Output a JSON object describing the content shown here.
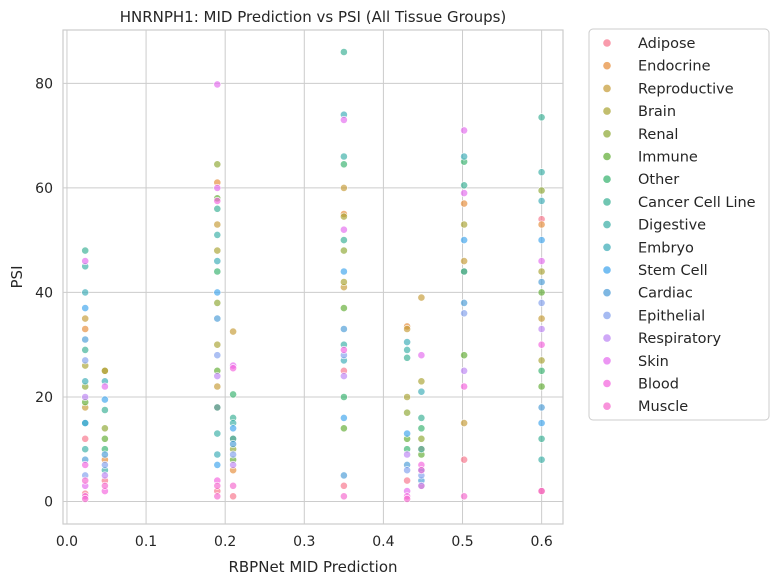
{
  "chart_data": {
    "type": "scatter",
    "title": "HNRNPH1: MID Prediction vs PSI (All Tissue Groups)",
    "xlabel": "RBPNet MID Prediction",
    "ylabel": "PSI",
    "xlim": [
      -0.005,
      0.627
    ],
    "ylim": [
      -4.3,
      90.2
    ],
    "xticks": [
      "0.0",
      "0.1",
      "0.2",
      "0.3",
      "0.4",
      "0.5",
      "0.6"
    ],
    "yticks": [
      "0",
      "20",
      "40",
      "60",
      "80"
    ],
    "xtick_values": [
      0.0,
      0.1,
      0.2,
      0.3,
      0.4,
      0.5,
      0.6
    ],
    "ytick_values": [
      0,
      20,
      40,
      60,
      80
    ],
    "grid": true,
    "legend_position": "outside-right",
    "x_clusters": [
      0.023,
      0.048,
      0.19,
      0.21,
      0.35,
      0.43,
      0.448,
      0.502,
      0.6
    ],
    "series": [
      {
        "name": "Adipose",
        "color": "#f77189",
        "x": [
          0.023,
          0.023,
          0.048,
          0.19,
          0.19,
          0.21,
          0.35,
          0.35,
          0.43,
          0.448,
          0.502,
          0.6,
          0.6
        ],
        "y": [
          1.5,
          12,
          4,
          2,
          18,
          1,
          3,
          25,
          4,
          3,
          8,
          2,
          54
        ]
      },
      {
        "name": "Endocrine",
        "color": "#e58a35",
        "x": [
          0.023,
          0.048,
          0.19,
          0.21,
          0.35,
          0.43,
          0.448,
          0.502,
          0.6
        ],
        "y": [
          33,
          8,
          61,
          6,
          55,
          33.5,
          10,
          57,
          53
        ]
      },
      {
        "name": "Reproductive",
        "color": "#c59a33",
        "x": [
          0.023,
          0.023,
          0.048,
          0.19,
          0.19,
          0.21,
          0.35,
          0.35,
          0.43,
          0.448,
          0.502,
          0.502,
          0.6
        ],
        "y": [
          35,
          18,
          25,
          53,
          22,
          32.5,
          60,
          41,
          33,
          39,
          46,
          15,
          35
        ]
      },
      {
        "name": "Brain",
        "color": "#a8a230",
        "x": [
          0.023,
          0.048,
          0.19,
          0.19,
          0.21,
          0.35,
          0.35,
          0.43,
          0.448,
          0.502,
          0.6,
          0.6
        ],
        "y": [
          26,
          25,
          48,
          30,
          12,
          54.5,
          42,
          20,
          23,
          53,
          44,
          27
        ]
      },
      {
        "name": "Renal",
        "color": "#8ca630",
        "x": [
          0.023,
          0.048,
          0.19,
          0.19,
          0.21,
          0.35,
          0.43,
          0.448,
          0.502,
          0.6
        ],
        "y": [
          22,
          14,
          64.5,
          38,
          10,
          48,
          17,
          12,
          44,
          59.5
        ]
      },
      {
        "name": "Immune",
        "color": "#5dab30",
        "x": [
          0.023,
          0.048,
          0.19,
          0.19,
          0.21,
          0.35,
          0.35,
          0.43,
          0.448,
          0.502,
          0.6,
          0.6
        ],
        "y": [
          19,
          12,
          58,
          25,
          8,
          37,
          14,
          12,
          9,
          28,
          40,
          22
        ]
      },
      {
        "name": "Other",
        "color": "#32b16b",
        "x": [
          0.023,
          0.048,
          0.19,
          0.21,
          0.35,
          0.35,
          0.43,
          0.448,
          0.502,
          0.6
        ],
        "y": [
          15,
          10,
          44,
          20.5,
          64.5,
          20,
          10,
          14,
          65,
          25
        ]
      },
      {
        "name": "Cancer Cell Line",
        "color": "#34ae92",
        "x": [
          0.023,
          0.023,
          0.048,
          0.19,
          0.19,
          0.21,
          0.35,
          0.35,
          0.43,
          0.448,
          0.502,
          0.6,
          0.6
        ],
        "y": [
          48,
          29,
          17.5,
          56,
          18,
          16,
          86,
          50,
          27.5,
          16,
          60.5,
          73.5,
          12
        ]
      },
      {
        "name": "Digestive",
        "color": "#36ada4",
        "x": [
          0.023,
          0.023,
          0.048,
          0.19,
          0.19,
          0.21,
          0.35,
          0.35,
          0.43,
          0.448,
          0.502,
          0.6,
          0.6
        ],
        "y": [
          45,
          10,
          6,
          51,
          13,
          15,
          66,
          30,
          29,
          10,
          44,
          63,
          8
        ]
      },
      {
        "name": "Embryo",
        "color": "#38aab5",
        "x": [
          0.023,
          0.023,
          0.048,
          0.19,
          0.19,
          0.21,
          0.35,
          0.35,
          0.43,
          0.448,
          0.502,
          0.6
        ],
        "y": [
          40,
          23,
          23,
          46,
          9,
          12,
          74,
          27,
          30.5,
          21,
          66,
          57.5
        ]
      },
      {
        "name": "Stem Cell",
        "color": "#3ba3ec",
        "x": [
          0.023,
          0.023,
          0.048,
          0.19,
          0.19,
          0.21,
          0.35,
          0.35,
          0.43,
          0.448,
          0.502,
          0.6,
          0.6
        ],
        "y": [
          37,
          15,
          19.5,
          40,
          7,
          14,
          44,
          16,
          13,
          6,
          50,
          50,
          15
        ]
      },
      {
        "name": "Cardiac",
        "color": "#4799d6",
        "x": [
          0.023,
          0.023,
          0.048,
          0.19,
          0.21,
          0.35,
          0.35,
          0.43,
          0.448,
          0.502,
          0.6,
          0.6
        ],
        "y": [
          31,
          8,
          9,
          35,
          11,
          33,
          5,
          7,
          4,
          38,
          42,
          18
        ]
      },
      {
        "name": "Epithelial",
        "color": "#809eec",
        "x": [
          0.023,
          0.023,
          0.048,
          0.19,
          0.21,
          0.35,
          0.43,
          0.448,
          0.502,
          0.6
        ],
        "y": [
          27,
          5,
          7,
          28,
          9,
          28,
          6,
          5,
          36,
          38
        ]
      },
      {
        "name": "Respiratory",
        "color": "#bb83f4",
        "x": [
          0.023,
          0.048,
          0.19,
          0.21,
          0.35,
          0.43,
          0.448,
          0.502,
          0.6
        ],
        "y": [
          20,
          5,
          24,
          7,
          24,
          9,
          3,
          25,
          33
        ]
      },
      {
        "name": "Skin",
        "color": "#e469ee",
        "x": [
          0.023,
          0.023,
          0.048,
          0.19,
          0.19,
          0.21,
          0.35,
          0.35,
          0.43,
          0.448,
          0.502,
          0.502,
          0.6
        ],
        "y": [
          46,
          3,
          22,
          79.8,
          60,
          26,
          73,
          52,
          2,
          28,
          71,
          59,
          46
        ]
      },
      {
        "name": "Blood",
        "color": "#f461dd",
        "x": [
          0.023,
          0.023,
          0.048,
          0.19,
          0.19,
          0.21,
          0.35,
          0.43,
          0.448,
          0.502,
          0.6
        ],
        "y": [
          1,
          7,
          2,
          57.5,
          4,
          25.5,
          29,
          1,
          7,
          22,
          30
        ]
      },
      {
        "name": "Muscle",
        "color": "#f565cc",
        "x": [
          0.023,
          0.023,
          0.048,
          0.19,
          0.19,
          0.21,
          0.35,
          0.43,
          0.448,
          0.502,
          0.6
        ],
        "y": [
          0.5,
          4,
          3,
          1,
          3,
          3,
          1,
          0.5,
          6,
          1,
          2
        ]
      }
    ]
  }
}
